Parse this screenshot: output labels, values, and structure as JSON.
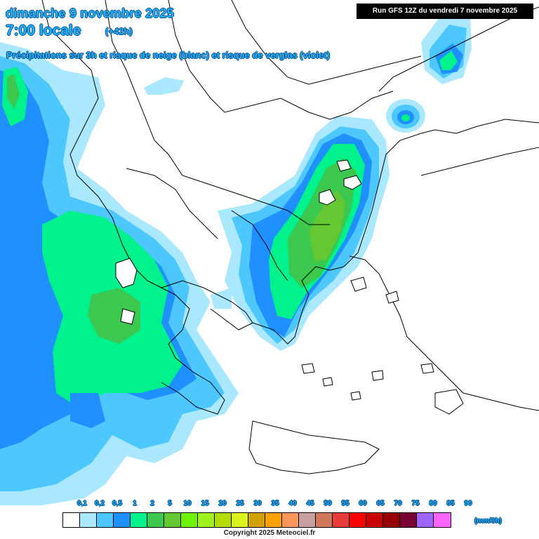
{
  "header": {
    "date_line": "dimanche 9 novembre 2025",
    "time_line": "7:00 locale",
    "offset": "(+42h)",
    "subtitle": "Précipitations sur 3h et risque de neige (blanc) et risque de verglas (violet)",
    "run": "Run GFS 12Z du vendredi 7 novembre 2025"
  },
  "legend": {
    "labels": [
      "0,1",
      "0,2",
      "0,5",
      "1",
      "2",
      "5",
      "10",
      "15",
      "20",
      "25",
      "30",
      "35",
      "40",
      "45",
      "50",
      "55",
      "60",
      "65",
      "70",
      "75",
      "80",
      "85",
      "90"
    ],
    "colors": [
      "#ffffff",
      "#a9e8ff",
      "#4cc8ff",
      "#1e90ff",
      "#00f28c",
      "#3cc84e",
      "#64c832",
      "#6ef200",
      "#a0f21e",
      "#b4dc00",
      "#dcf21e",
      "#d2a000",
      "#ffa000",
      "#ff965a",
      "#c8a0a0",
      "#d2785a",
      "#e63c3c",
      "#ff0000",
      "#c80000",
      "#960000",
      "#780032",
      "#a064ff",
      "#ff64ff"
    ],
    "unit": "(mm/3h)"
  },
  "footer": {
    "copyright": "Copyright 2025 Meteociel.fr"
  },
  "map": {
    "region": "Balkans / Grèce / Mer Égée",
    "land_color": "#ffffff",
    "border_color": "#000000"
  }
}
